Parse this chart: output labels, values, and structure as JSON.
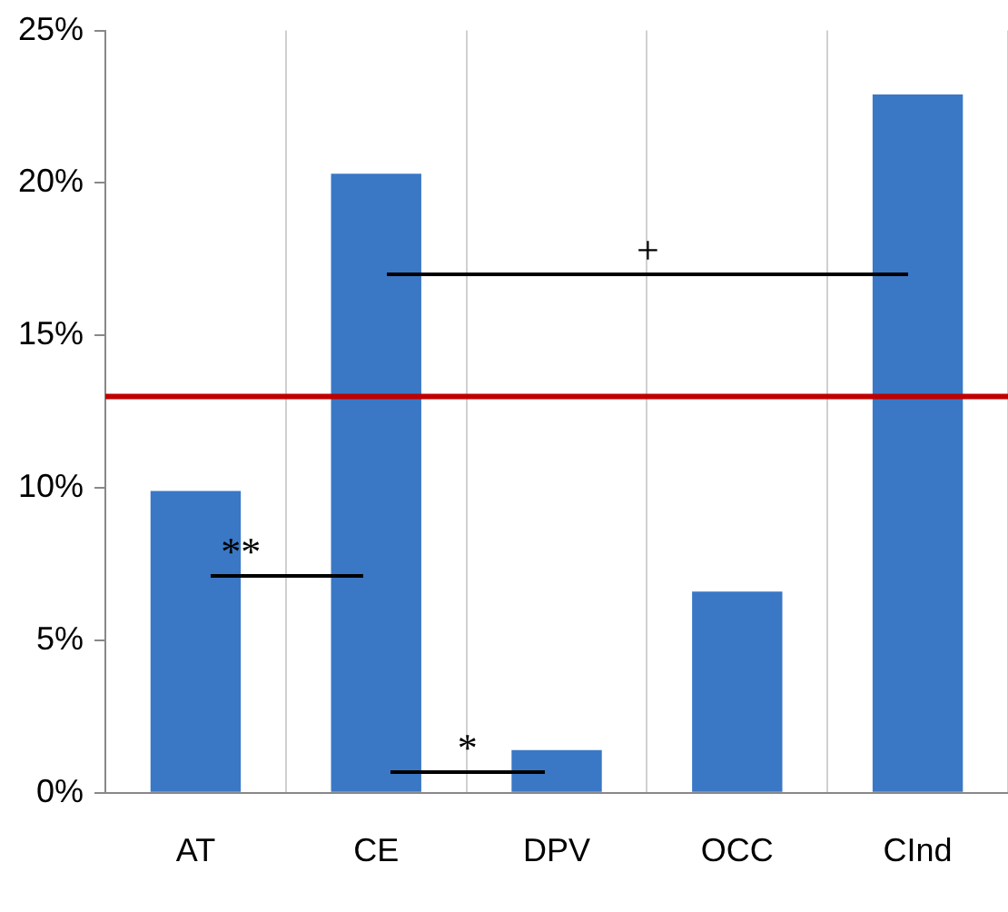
{
  "chart_data": {
    "type": "bar",
    "categories": [
      "AT",
      "CE",
      "DPV",
      "OCC",
      "CInd"
    ],
    "values": [
      9.9,
      20.3,
      1.4,
      6.6,
      22.9
    ],
    "color": "#3a78c6",
    "ylim": [
      0,
      25
    ],
    "yticks": [
      {
        "value": 0,
        "label": "0%"
      },
      {
        "value": 5,
        "label": "5%"
      },
      {
        "value": 10,
        "label": "10%"
      },
      {
        "value": 15,
        "label": "15%"
      },
      {
        "value": 20,
        "label": "20%"
      },
      {
        "value": 25,
        "label": "25%"
      }
    ],
    "grid": "x",
    "legend": false,
    "ref_lines": [
      {
        "axis": "y",
        "value": 13,
        "color": "#c00000"
      }
    ],
    "annotations": [
      "**",
      "*",
      "+"
    ]
  }
}
